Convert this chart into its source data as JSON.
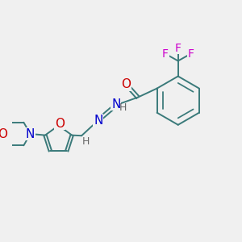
{
  "background_color": "#f0f0f0",
  "bond_color": "#3a7a7a",
  "bond_width": 1.4,
  "atom_colors": {
    "O": "#cc0000",
    "N": "#0000cc",
    "F": "#cc00cc",
    "H": "#666666",
    "C": "#3a7a7a"
  },
  "figsize": [
    3.0,
    3.0
  ],
  "dpi": 100,
  "xlim": [
    0,
    10
  ],
  "ylim": [
    0,
    10
  ]
}
